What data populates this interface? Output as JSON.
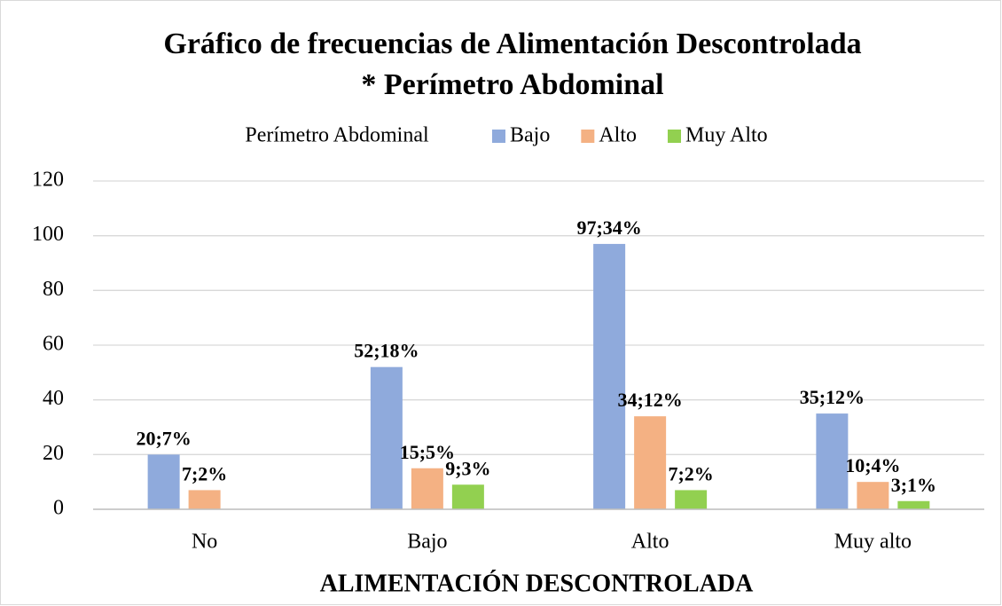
{
  "chart_data": {
    "type": "bar",
    "title": [
      "Gráfico de frecuencias de Alimentación Descontrolada",
      "* Perímetro Abdominal"
    ],
    "legend_title": "Perímetro Abdominal",
    "x_label": "ALIMENTACIÓN DESCONTROLADA",
    "categories": [
      "No",
      "Bajo",
      "Alto",
      "Muy alto"
    ],
    "series": [
      {
        "name": "Bajo",
        "color": "#8faadc",
        "values": [
          20,
          52,
          97,
          35
        ],
        "value_labels": [
          "20;7%",
          "52;18%",
          "97;34%",
          "35;12%"
        ]
      },
      {
        "name": "Alto",
        "color": "#f4b183",
        "values": [
          7,
          15,
          34,
          10
        ],
        "value_labels": [
          "7;2%",
          "15;5%",
          "34;12%",
          "10;4%"
        ]
      },
      {
        "name": "Muy Alto",
        "color": "#92d050",
        "values": [
          null,
          9,
          7,
          3
        ],
        "value_labels": [
          null,
          "9;3%",
          "7;2%",
          "3;1%"
        ]
      }
    ],
    "ylim": [
      0,
      120
    ],
    "yticks": [
      0,
      20,
      40,
      60,
      80,
      100,
      120
    ],
    "grid": true,
    "legend": "top"
  }
}
